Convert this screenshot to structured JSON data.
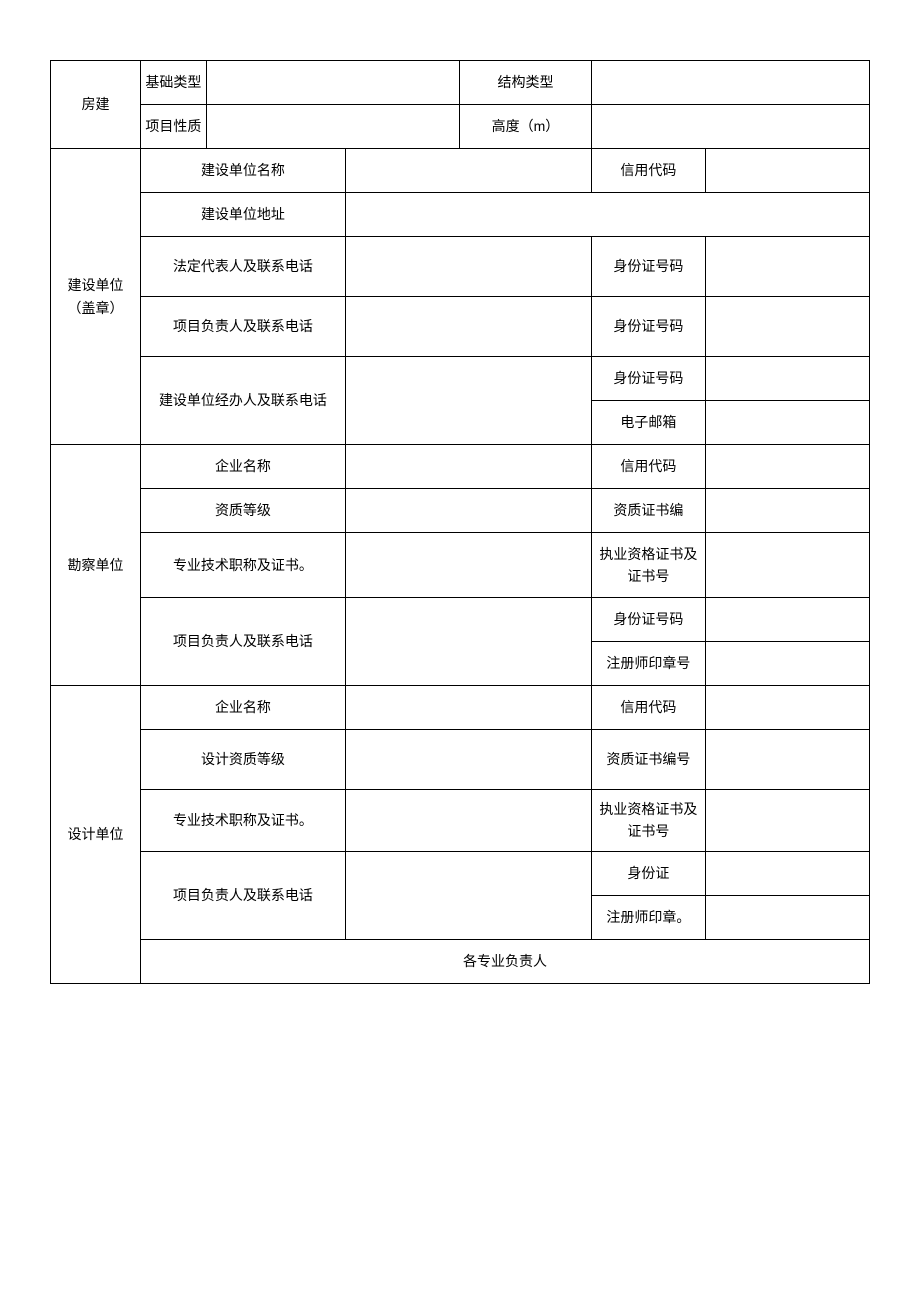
{
  "housing": {
    "title": "房建",
    "foundation_type_label": "基础类型",
    "foundation_type": "",
    "structure_type_label": "结构类型",
    "structure_type": "",
    "project_nature_label": "项目性质",
    "project_nature": "",
    "height_label": "高度（m）",
    "height": ""
  },
  "construction_unit": {
    "title": "建设单位（盖章）",
    "name_label": "建设单位名称",
    "name": "",
    "credit_code_label": "信用代码",
    "credit_code": "",
    "address_label": "建设单位地址",
    "address": "",
    "legal_rep_label": "法定代表人及联系电话",
    "legal_rep": "",
    "legal_rep_id_label": "身份证号码",
    "legal_rep_id": "",
    "project_lead_label": "项目负责人及联系电话",
    "project_lead": "",
    "project_lead_id_label": "身份证号码",
    "project_lead_id": "",
    "handler_label": "建设单位经办人及联系电话",
    "handler": "",
    "handler_id_label": "身份证号码",
    "handler_id": "",
    "handler_email_label": "电子邮箱",
    "handler_email": ""
  },
  "survey_unit": {
    "title": "勘察单位",
    "name_label": "企业名称",
    "name": "",
    "credit_code_label": "信用代码",
    "credit_code": "",
    "qualification_label": "资质等级",
    "qualification": "",
    "cert_no_label": "资质证书编",
    "cert_no": "",
    "tech_title_label": "专业技术职称及证书。",
    "tech_title": "",
    "practice_cert_label": "执业资格证书及证书号",
    "practice_cert": "",
    "project_lead_label": "项目负责人及联系电话",
    "project_lead": "",
    "project_lead_id_label": "身份证号码",
    "project_lead_id": "",
    "reg_stamp_label": "注册师印章号",
    "reg_stamp": ""
  },
  "design_unit": {
    "title": "设计单位",
    "name_label": "企业名称",
    "name": "",
    "credit_code_label": "信用代码",
    "credit_code": "",
    "qualification_label": "设计资质等级",
    "qualification": "",
    "cert_no_label": "资质证书编号",
    "cert_no": "",
    "tech_title_label": "专业技术职称及证书。",
    "tech_title": "",
    "practice_cert_label": "执业资格证书及证书号",
    "practice_cert": "",
    "project_lead_label": "项目负责人及联系电话",
    "project_lead": "",
    "project_lead_id_label": "身份证",
    "project_lead_id": "",
    "reg_stamp_label": "注册师印章。",
    "reg_stamp": "",
    "specialists_label": "各专业负责人"
  }
}
